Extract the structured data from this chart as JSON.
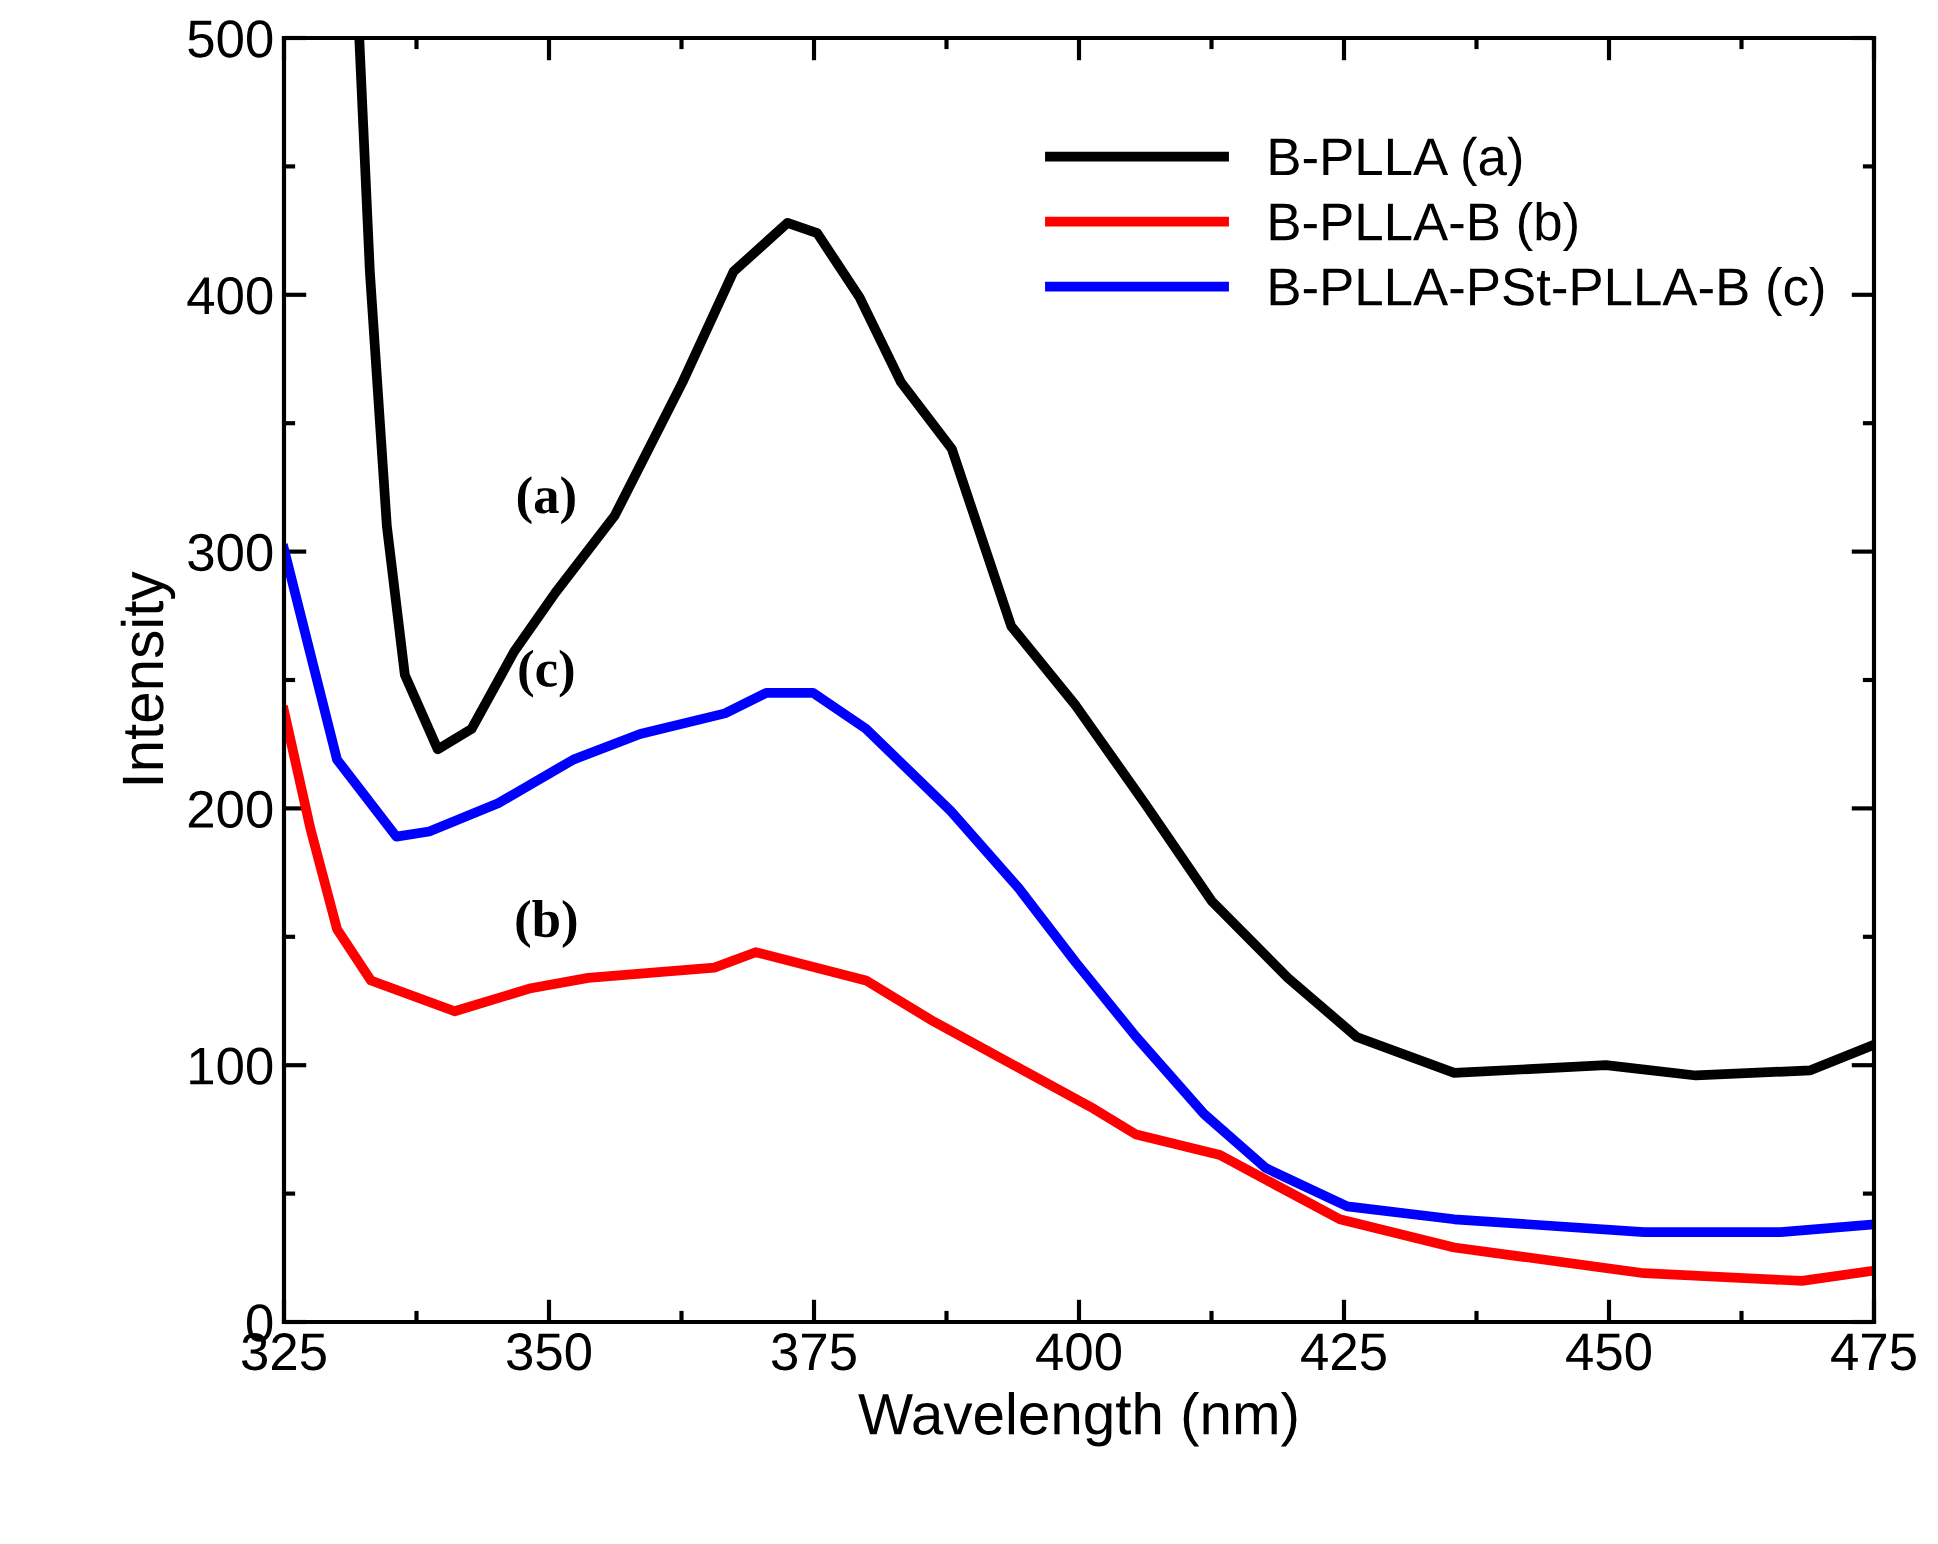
{
  "chart_data": {
    "type": "line",
    "xlabel": "Wavelength (nm)",
    "ylabel": "Intensity",
    "xlim": [
      325,
      475
    ],
    "ylim": [
      0,
      500
    ],
    "xticks": [
      325,
      350,
      375,
      400,
      425,
      450,
      475
    ],
    "yticks": [
      0,
      100,
      200,
      300,
      400,
      500
    ],
    "grid": false,
    "legend": "top right",
    "line_style": "solid",
    "marker": "none",
    "annotations": [
      "(a)",
      "(c)",
      "(b)"
    ],
    "series": [
      {
        "name": "B-PLLA (a)",
        "color": "#000000",
        "x": [
          332.1,
          333.1,
          334.7,
          336.4,
          339.5,
          342.7,
          346.7,
          350.6,
          356.2,
          362.6,
          367.4,
          372.5,
          375.3,
          379.3,
          383.2,
          388.0,
          393.6,
          399.7,
          406.2,
          412.5,
          419.7,
          426.2,
          435.4,
          449.7,
          458.2,
          469.0,
          475
        ],
        "values": [
          500,
          409,
          310,
          252,
          223,
          231,
          261,
          284,
          314,
          366,
          409,
          428,
          424,
          399,
          366,
          340,
          271,
          240,
          202,
          164,
          134,
          111,
          97,
          100,
          96,
          98,
          108
        ]
      },
      {
        "name": "B-PLLA-B (b)",
        "color": "#ff0000",
        "x": [
          325,
          327.5,
          330,
          333.2,
          341.1,
          348.3,
          353.7,
          365.6,
          369.5,
          379.9,
          386.3,
          394.3,
          401.4,
          405.4,
          413.3,
          424.6,
          435.4,
          453.3,
          468.2,
          475
        ],
        "values": [
          238,
          192,
          153,
          133,
          121,
          130,
          134,
          138,
          144,
          133,
          117,
          99,
          83,
          73,
          65,
          40,
          29,
          19,
          16,
          20
        ]
      },
      {
        "name": "B-PLLA-PSt-PLLA-B (c)",
        "color": "#0000ff",
        "x": [
          325,
          330,
          335.6,
          338.7,
          345.2,
          352.3,
          358.6,
          366.6,
          370.5,
          374.9,
          379.9,
          387.9,
          394.3,
          399.7,
          405.4,
          411.8,
          417.6,
          425.3,
          435.4,
          453.3,
          466.2,
          475
        ],
        "values": [
          301,
          219,
          189,
          191,
          202,
          219,
          229,
          237,
          245,
          245,
          231,
          199,
          169,
          140,
          111,
          81,
          60,
          45,
          40,
          35,
          35,
          38
        ]
      }
    ]
  }
}
